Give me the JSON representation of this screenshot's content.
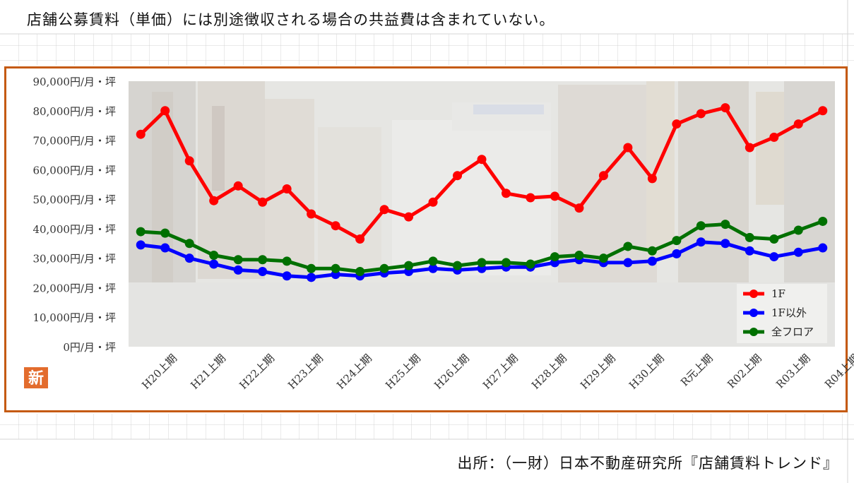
{
  "note": "店舗公募賃料（単価）には別途徴収される場合の共益費は含まれていない。",
  "source": "出所：（一財）日本不動産研究所『店舗賃料トレンド』",
  "badge": "新",
  "colors": {
    "series_1f": "#ff0000",
    "series_other": "#0000ff",
    "series_all": "#007000",
    "frame": "#c55a11",
    "badge_bg": "#e36c2d"
  },
  "chart_data": {
    "type": "line",
    "ylim": [
      0,
      90000
    ],
    "y_tick_values": [
      0,
      10000,
      20000,
      30000,
      40000,
      50000,
      60000,
      70000,
      80000,
      90000
    ],
    "y_tick_labels": [
      "0円/月・坪",
      "10,000円/月・坪",
      "20,000円/月・坪",
      "30,000円/月・坪",
      "40,000円/月・坪",
      "50,000円/月・坪",
      "60,000円/月・坪",
      "70,000円/月・坪",
      "80,000円/月・坪",
      "90,000円/月・坪"
    ],
    "x_labels": [
      "H20上期",
      "H21上期",
      "H22上期",
      "H23上期",
      "H24上期",
      "H25上期",
      "H26上期",
      "H27上期",
      "H28上期",
      "H29上期",
      "H30上期",
      "R元上期",
      "R02上期",
      "R03上期",
      "R04上期"
    ],
    "points_per_label": 2,
    "legend_position": "bottom-right",
    "series": [
      {
        "name": "1F",
        "color": "#ff0000",
        "values": [
          72000,
          80000,
          63000,
          49500,
          54500,
          49000,
          53500,
          45000,
          41000,
          36500,
          46500,
          44000,
          49000,
          58000,
          63500,
          52000,
          50500,
          51000,
          47000,
          58000,
          67500,
          57000,
          75500,
          79000,
          81000,
          67500,
          71000,
          75500,
          80000
        ]
      },
      {
        "name": "1F以外",
        "color": "#0000ff",
        "values": [
          34500,
          33500,
          30000,
          28000,
          26000,
          25500,
          24000,
          23500,
          24500,
          24000,
          25000,
          25500,
          26500,
          26000,
          26500,
          27000,
          27000,
          28500,
          29500,
          28500,
          28500,
          29000,
          31500,
          35500,
          35000,
          32500,
          30500,
          32000,
          33500
        ]
      },
      {
        "name": "全フロア",
        "color": "#007000",
        "values": [
          39000,
          38500,
          35000,
          31000,
          29500,
          29500,
          29000,
          26500,
          26500,
          25500,
          26500,
          27500,
          29000,
          27500,
          28500,
          28500,
          28000,
          30500,
          31000,
          30000,
          34000,
          32500,
          36000,
          41000,
          41500,
          37000,
          36500,
          39500,
          42500
        ]
      }
    ]
  }
}
